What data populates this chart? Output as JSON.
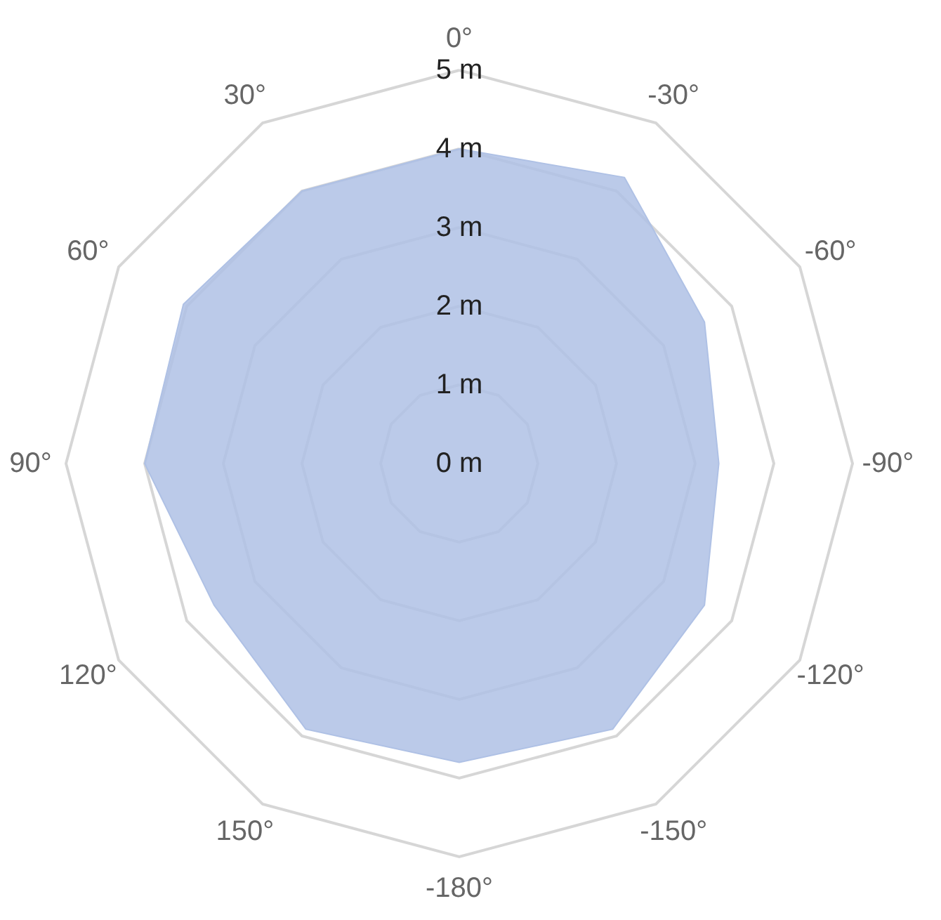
{
  "chart_data": {
    "type": "radar",
    "categories": [
      "0°",
      "-30°",
      "-60°",
      "-90°",
      "-120°",
      "-150°",
      "-180°",
      "150°",
      "120°",
      "90°",
      "60°",
      "30°"
    ],
    "series": [
      {
        "color": "#afc1e5",
        "values": [
          4.0,
          4.2,
          3.6,
          3.3,
          3.6,
          3.9,
          3.8,
          3.9,
          3.6,
          4.0,
          4.05,
          4.0
        ]
      }
    ],
    "ylim": [
      0,
      5
    ],
    "yticks": [
      {
        "value": 0,
        "label": "0 m"
      },
      {
        "value": 1,
        "label": "1 m"
      },
      {
        "value": 2,
        "label": "2 m"
      },
      {
        "value": 3,
        "label": "3 m"
      },
      {
        "value": 4,
        "label": "4 m"
      },
      {
        "value": 5,
        "label": "5 m"
      }
    ],
    "grid": true
  }
}
